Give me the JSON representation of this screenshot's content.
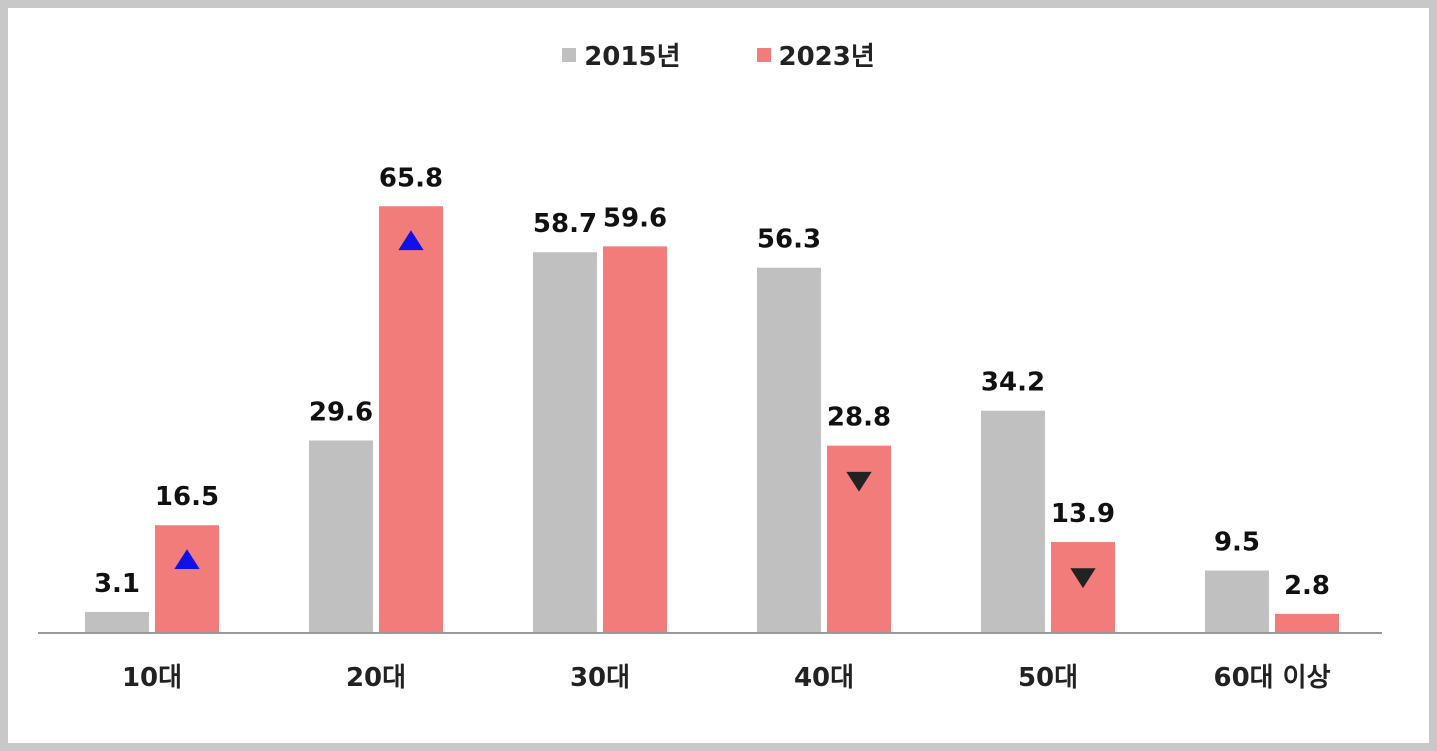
{
  "chart_data": {
    "type": "bar",
    "title": "",
    "xlabel": "",
    "ylabel": "",
    "ylim": [
      0,
      70
    ],
    "grid": false,
    "legend_position": "top-center",
    "categories": [
      "10대",
      "20대",
      "30대",
      "40대",
      "50대",
      "60대 이상"
    ],
    "series": [
      {
        "name": "2015년",
        "color": "#c0c0c0",
        "values": [
          3.1,
          29.6,
          58.7,
          56.3,
          34.2,
          9.5
        ]
      },
      {
        "name": "2023년",
        "color": "#f27c79",
        "values": [
          16.5,
          65.8,
          59.6,
          28.8,
          13.9,
          2.8
        ]
      }
    ],
    "data_labels": [
      [
        "3.1",
        "29.6",
        "58.7",
        "56.3",
        "34.2",
        "9.5"
      ],
      [
        "16.5",
        "65.8",
        "59.6",
        "28.8",
        "13.9",
        "2.8"
      ]
    ],
    "markers": [
      {
        "category": "10대",
        "series": "2023년",
        "shape": "triangle-up",
        "color": "#1010e8"
      },
      {
        "category": "20대",
        "series": "2023년",
        "shape": "triangle-up",
        "color": "#1010e8"
      },
      {
        "category": "40대",
        "series": "2023년",
        "shape": "triangle-down",
        "color": "#222222"
      },
      {
        "category": "50대",
        "series": "2023년",
        "shape": "triangle-down",
        "color": "#222222"
      }
    ],
    "axis_color": "#999999"
  }
}
